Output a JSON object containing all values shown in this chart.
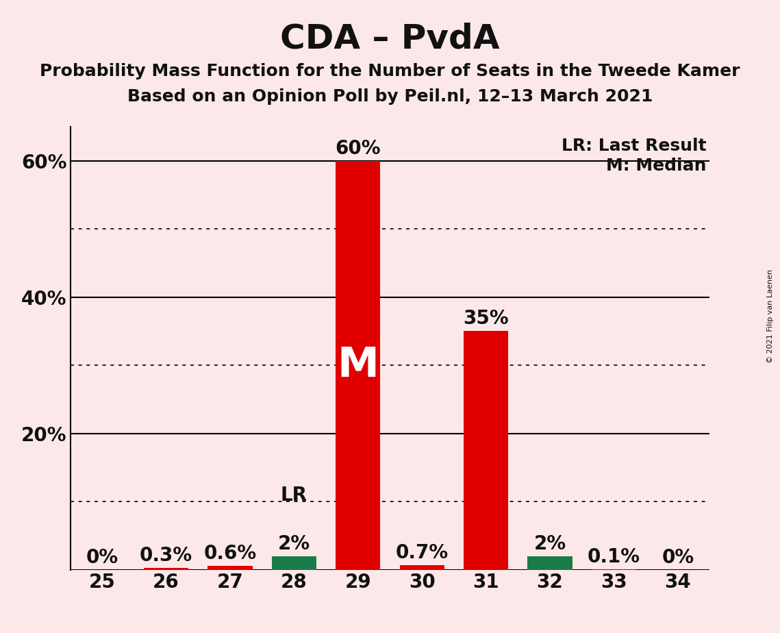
{
  "title": "CDA – PvdA",
  "subtitle1": "Probability Mass Function for the Number of Seats in the Tweede Kamer",
  "subtitle2": "Based on an Opinion Poll by Peil.nl, 12–13 March 2021",
  "copyright": "© 2021 Filip van Laenen",
  "seats": [
    25,
    26,
    27,
    28,
    29,
    30,
    31,
    32,
    33,
    34
  ],
  "probabilities": [
    0.0,
    0.3,
    0.6,
    2.0,
    60.0,
    0.7,
    35.0,
    2.0,
    0.1,
    0.0
  ],
  "bar_colors": [
    "#e00000",
    "#e00000",
    "#e00000",
    "#1a7a4a",
    "#e00000",
    "#e00000",
    "#e00000",
    "#1a7a4a",
    "#e00000",
    "#e00000"
  ],
  "median_seat": 29,
  "lr_seat": 28,
  "legend_lr": "LR: Last Result",
  "legend_m": "M: Median",
  "background_color": "#fce8e8",
  "ylim": [
    0,
    65
  ],
  "yticks": [
    20,
    40,
    60
  ],
  "ytick_labels": [
    "20%",
    "40%",
    "60%"
  ],
  "solid_lines": [
    20,
    40,
    60
  ],
  "dotted_lines": [
    10,
    30,
    50
  ],
  "title_fontsize": 36,
  "subtitle_fontsize": 18,
  "value_label_fontsize": 20,
  "tick_fontsize": 20,
  "legend_fontsize": 18,
  "text_color": "#111111",
  "prob_labels": [
    "0%",
    "0.3%",
    "0.6%",
    "2%",
    "60%",
    "0.7%",
    "35%",
    "2%",
    "0.1%",
    "0%"
  ]
}
